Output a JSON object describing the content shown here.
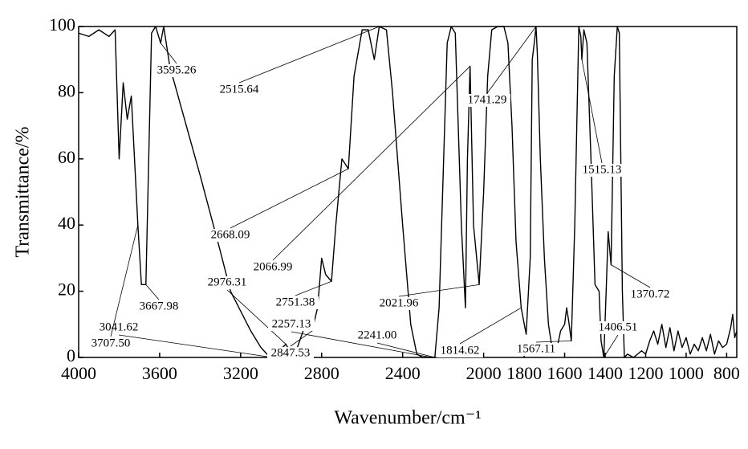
{
  "chart_data": {
    "type": "line",
    "xlabel": "Wavenumber/cm⁻¹",
    "ylabel": "Transmittance/%",
    "color": "#000000",
    "xlim": [
      4000,
      750
    ],
    "ylim": [
      0,
      100
    ],
    "xticks": [
      4000,
      3600,
      3200,
      2800,
      2400,
      2000,
      1800,
      1600,
      1400,
      1200,
      1000,
      800
    ],
    "yticks": [
      0,
      20,
      40,
      60,
      80,
      100
    ],
    "x": [
      4000,
      3950,
      3900,
      3850,
      3820,
      3800,
      3780,
      3760,
      3740,
      3720,
      3707.5,
      3690,
      3667.98,
      3640,
      3620,
      3595.26,
      3580,
      3550,
      3500,
      3400,
      3300,
      3250,
      3200,
      3150,
      3100,
      3070,
      3041.62,
      3010,
      2976.31,
      2950,
      2920,
      2880,
      2847.53,
      2820,
      2800,
      2780,
      2751.38,
      2730,
      2700,
      2668.09,
      2640,
      2600,
      2570,
      2540,
      2515.64,
      2480,
      2450,
      2400,
      2360,
      2330,
      2300,
      2270,
      2257.13,
      2241,
      2220,
      2180,
      2160,
      2140,
      2110,
      2090,
      2080,
      2066.99,
      2050,
      2021.96,
      2000,
      1980,
      1960,
      1930,
      1900,
      1880,
      1860,
      1840,
      1814.62,
      1790,
      1770,
      1760,
      1750,
      1741.29,
      1735,
      1720,
      1700,
      1680,
      1660,
      1640,
      1620,
      1600,
      1590,
      1580,
      1567.11,
      1550,
      1530,
      1520,
      1515.13,
      1505,
      1490,
      1470,
      1450,
      1430,
      1420,
      1406.51,
      1395,
      1385,
      1370.72,
      1355,
      1340,
      1330,
      1315,
      1305,
      1290,
      1260,
      1220,
      1200,
      1180,
      1160,
      1140,
      1120,
      1100,
      1080,
      1060,
      1040,
      1020,
      1000,
      980,
      960,
      940,
      920,
      900,
      880,
      860,
      840,
      820,
      800,
      780,
      770,
      760,
      750
    ],
    "values": [
      98,
      97,
      99,
      97,
      99,
      60,
      83,
      72,
      79,
      55,
      40,
      22,
      22,
      98,
      100,
      95,
      100,
      88,
      77,
      55,
      32,
      20,
      14,
      8,
      3,
      1,
      0,
      2,
      4,
      1,
      3,
      10,
      8,
      15,
      30,
      25,
      23,
      40,
      60,
      57,
      85,
      99,
      99,
      90,
      100,
      99,
      80,
      40,
      10,
      1,
      0,
      0,
      0,
      0,
      15,
      95,
      100,
      98,
      40,
      15,
      60,
      88,
      40,
      22,
      50,
      85,
      99,
      100,
      100,
      95,
      70,
      35,
      15,
      7,
      30,
      90,
      95,
      100,
      92,
      60,
      30,
      10,
      2,
      2,
      8,
      10,
      15,
      11,
      5,
      40,
      100,
      97,
      90,
      99,
      95,
      60,
      22,
      20,
      5,
      0,
      20,
      38,
      28,
      85,
      100,
      98,
      20,
      0,
      1,
      0,
      2,
      1,
      5,
      8,
      4,
      10,
      3,
      9,
      2,
      8,
      3,
      6,
      1,
      4,
      2,
      6,
      2,
      7,
      1,
      5,
      3,
      4,
      9,
      13,
      6,
      8
    ],
    "annotations": [
      {
        "label": "3595.26",
        "x": 3595.26,
        "y": 95
      },
      {
        "label": "2515.64",
        "x": 2515.64,
        "y": 100
      },
      {
        "label": "1741.29",
        "x": 1741.29,
        "y": 100
      },
      {
        "label": "1515.13",
        "x": 1515.13,
        "y": 90
      },
      {
        "label": "2668.09",
        "x": 2668.09,
        "y": 57
      },
      {
        "label": "2066.99",
        "x": 2066.99,
        "y": 88
      },
      {
        "label": "2976.31",
        "x": 2976.31,
        "y": 4
      },
      {
        "label": "2751.38",
        "x": 2751.38,
        "y": 23
      },
      {
        "label": "3667.98",
        "x": 3667.98,
        "y": 22
      },
      {
        "label": "2021.96",
        "x": 2021.96,
        "y": 22
      },
      {
        "label": "1370.72",
        "x": 1370.72,
        "y": 28
      },
      {
        "label": "3041.62",
        "x": 3041.62,
        "y": 0
      },
      {
        "label": "2257.13",
        "x": 2257.13,
        "y": 0
      },
      {
        "label": "1406.51",
        "x": 1406.51,
        "y": 0
      },
      {
        "label": "3707.50",
        "x": 3707.5,
        "y": 40
      },
      {
        "label": "2847.53",
        "x": 2847.53,
        "y": 8
      },
      {
        "label": "2241.00",
        "x": 2241,
        "y": 0
      },
      {
        "label": "1814.62",
        "x": 1814.62,
        "y": 15
      },
      {
        "label": "1567.11",
        "x": 1567.11,
        "y": 5
      }
    ]
  }
}
